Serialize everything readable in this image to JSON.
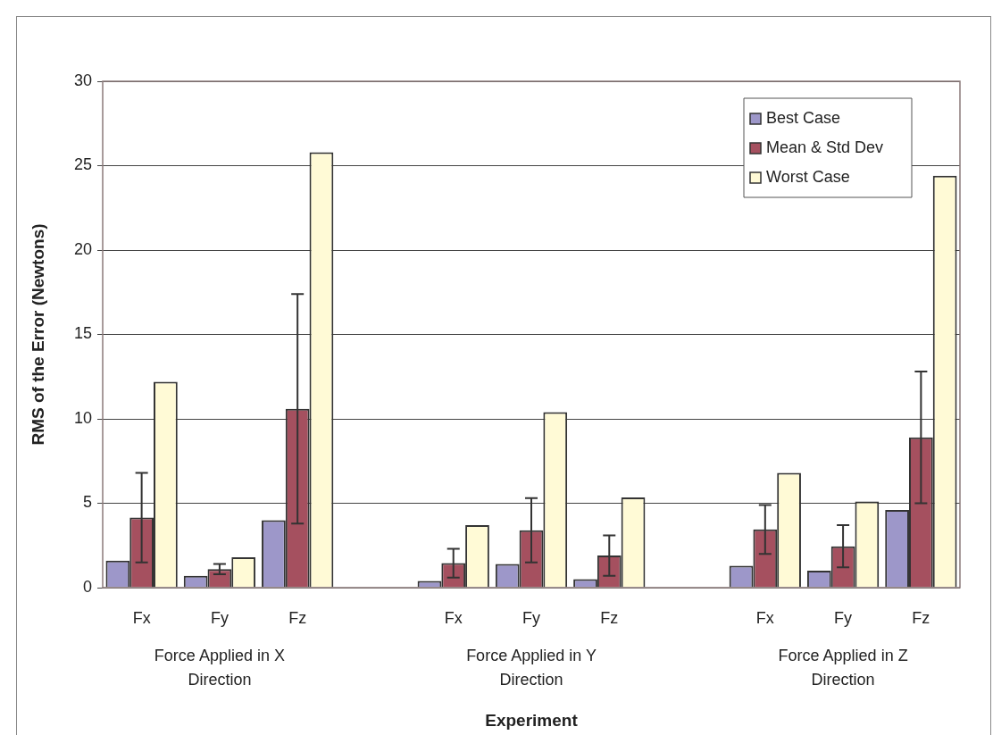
{
  "chart_data": {
    "type": "bar",
    "xlabel": "Experiment",
    "ylabel": "RMS of the Error (Newtons)",
    "categories": [
      "Fx",
      "Fy",
      "Fz",
      null,
      "Fx",
      "Fy",
      "Fz",
      null,
      "Fx",
      "Fy",
      "Fz"
    ],
    "series": [
      {
        "name": "Best Case",
        "color": "#9d97c9",
        "values": [
          1.6,
          0.7,
          4.0,
          null,
          0.4,
          1.4,
          0.5,
          null,
          1.3,
          1.0,
          4.6
        ]
      },
      {
        "name": "Mean & Std Dev",
        "color": "#a5505f",
        "values": [
          4.15,
          1.1,
          10.6,
          null,
          1.45,
          3.4,
          1.9,
          null,
          3.45,
          2.45,
          8.9
        ],
        "errors": [
          2.65,
          0.3,
          6.8,
          null,
          0.85,
          1.9,
          1.2,
          null,
          1.45,
          1.25,
          3.9
        ]
      },
      {
        "name": "Worst Case",
        "color": "#fffad6",
        "values": [
          12.2,
          1.8,
          25.8,
          null,
          3.7,
          10.4,
          5.35,
          null,
          6.8,
          5.1,
          24.4
        ]
      }
    ],
    "ylim": [
      0,
      30
    ],
    "yticks": [
      0,
      5,
      10,
      15,
      20,
      25,
      30
    ],
    "grid": "y",
    "legend": "top right",
    "annotations": [
      "Force Applied in X Direction",
      "Force Applied in Y Direction",
      "Force Applied in Z Direction"
    ]
  }
}
